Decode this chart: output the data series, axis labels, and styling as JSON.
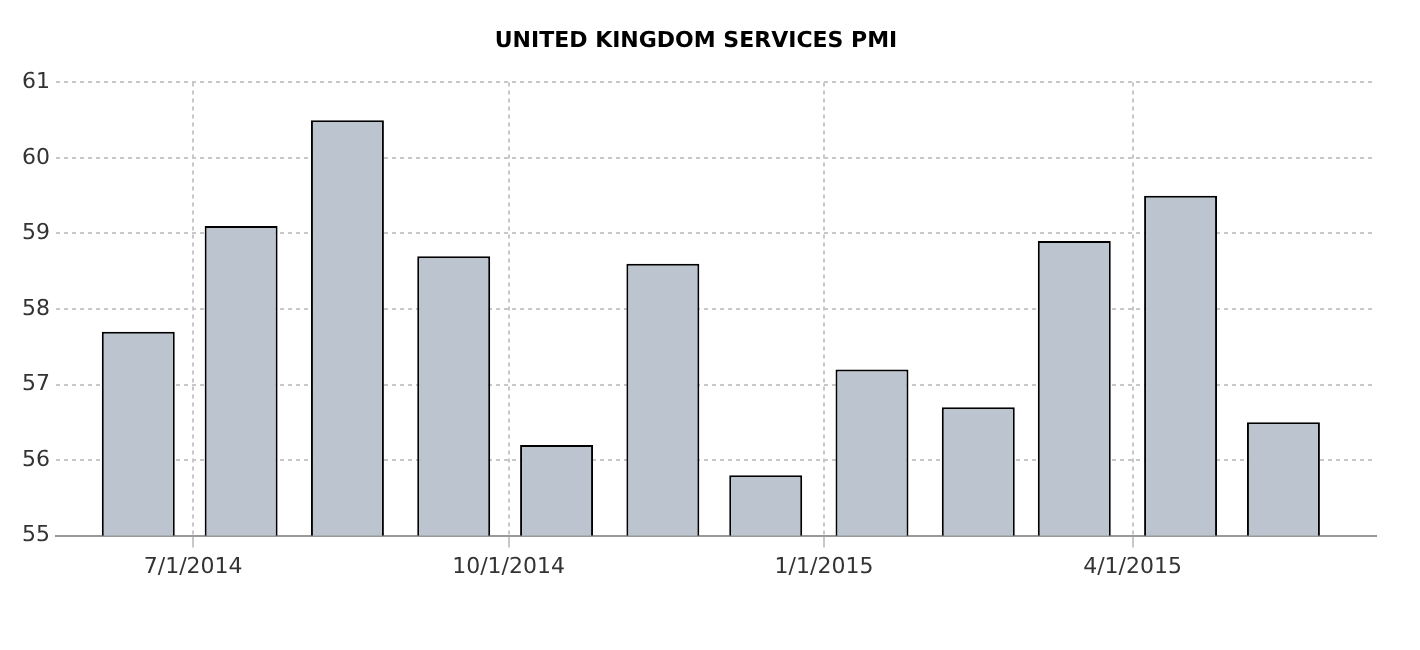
{
  "chart_data": {
    "type": "bar",
    "title": "UNITED KINGDOM SERVICES PMI",
    "x": [
      "2014-06-15",
      "2014-07-15",
      "2014-08-15",
      "2014-09-15",
      "2014-10-15",
      "2014-11-15",
      "2014-12-15",
      "2015-01-15",
      "2015-02-15",
      "2015-03-15",
      "2015-04-15",
      "2015-05-15"
    ],
    "values": [
      57.7,
      59.1,
      60.5,
      58.7,
      56.2,
      58.6,
      55.8,
      57.2,
      56.7,
      58.9,
      59.5,
      56.5
    ],
    "color": "#bcc5cf",
    "xlim": [
      "2014-05-22",
      "2015-06-11"
    ],
    "xticks": [
      {
        "value": "2014-07-01",
        "label": "7/1/2014"
      },
      {
        "value": "2014-10-01",
        "label": "10/1/2014"
      },
      {
        "value": "2015-01-01",
        "label": "1/1/2015"
      },
      {
        "value": "2015-04-01",
        "label": "4/1/2015"
      }
    ],
    "ylim": [
      55,
      61
    ],
    "yticks": [
      55,
      56,
      57,
      58,
      59,
      60,
      61
    ],
    "grid": true
  }
}
